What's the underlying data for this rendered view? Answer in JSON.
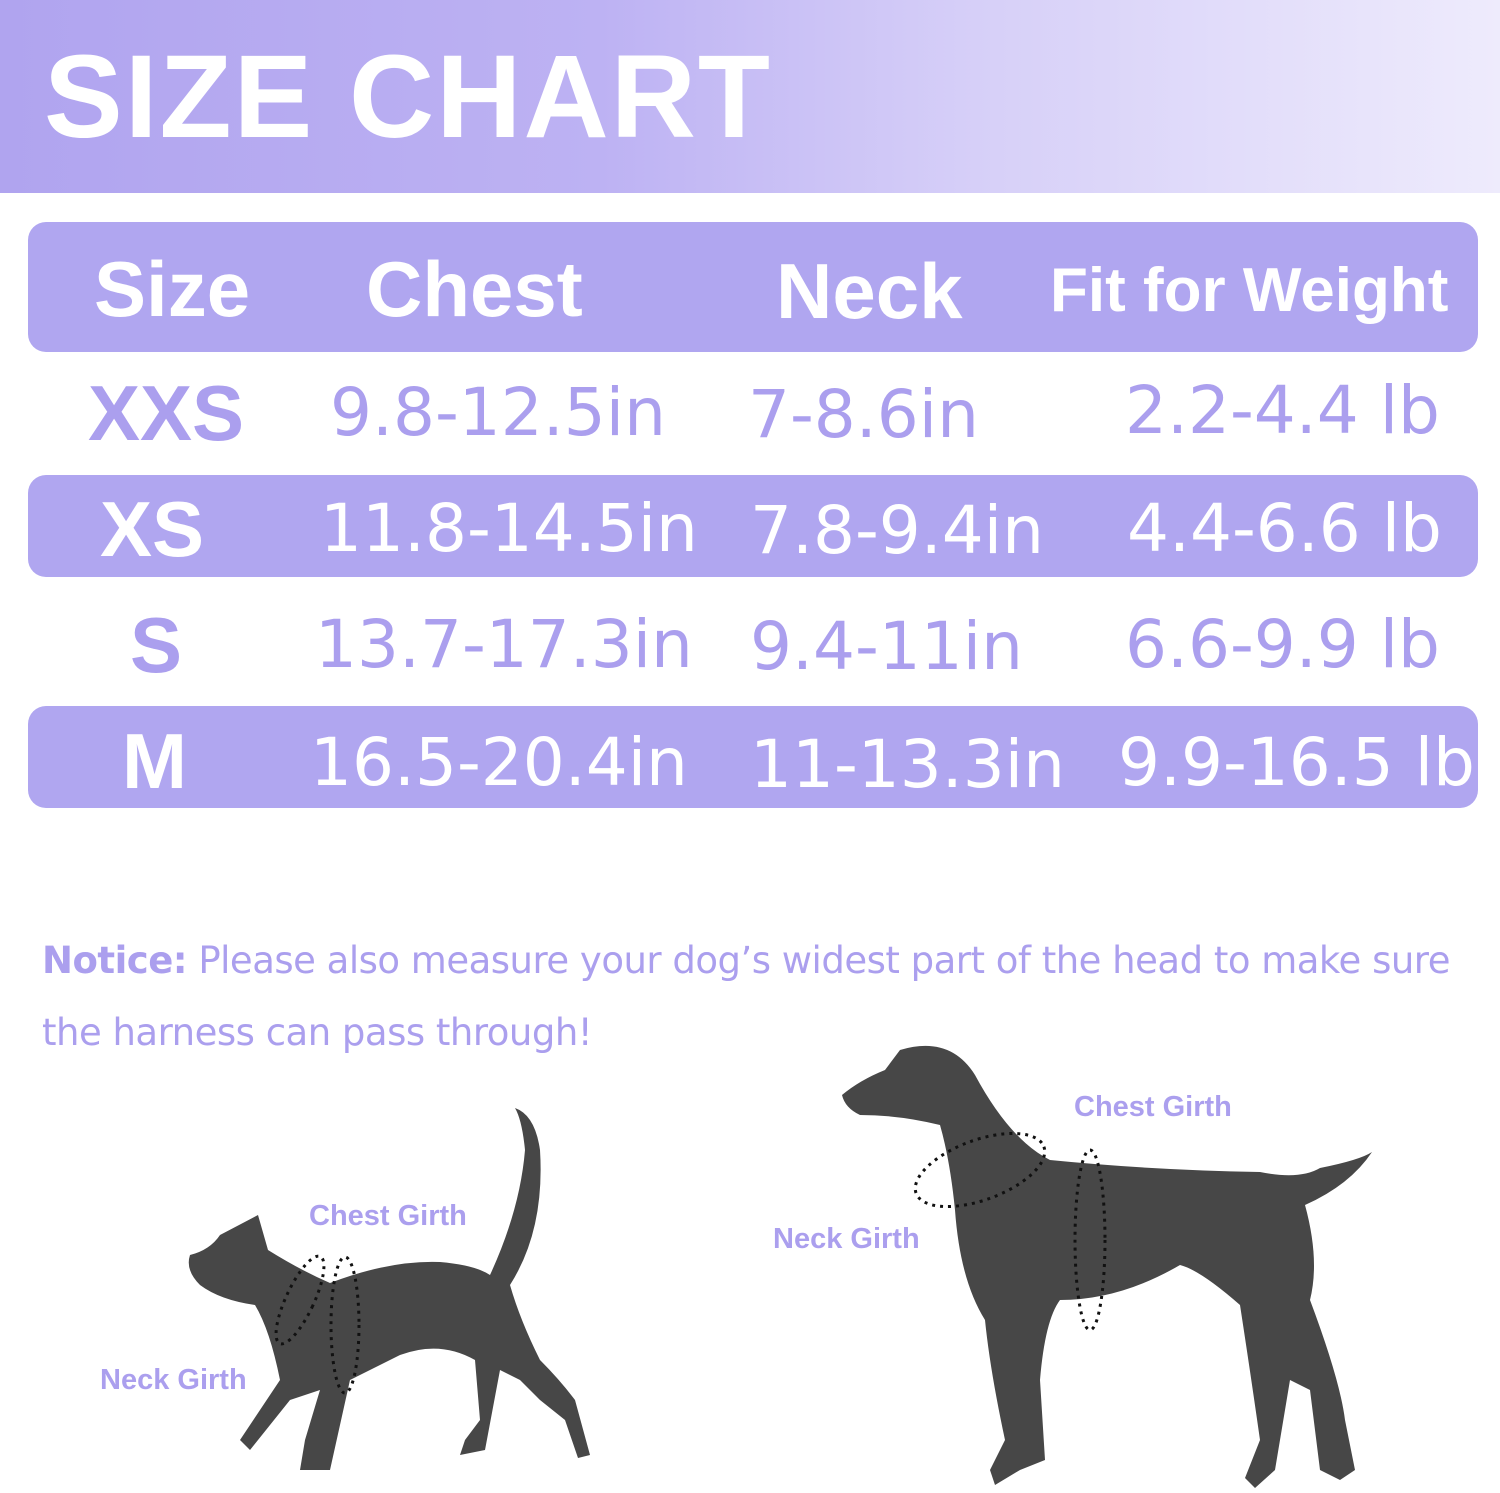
{
  "title": "SIZE CHART",
  "colors": {
    "accent": "#b0a6f0",
    "text_purple": "#ab9fee",
    "silhouette": "#474747"
  },
  "table": {
    "headers": [
      "Size",
      "Chest",
      "Neck",
      "Fit for Weight"
    ],
    "rows": [
      {
        "size": "XXS",
        "chest": "9.8-12.5in",
        "neck": "7-8.6in",
        "weight": "2.2-4.4 lb"
      },
      {
        "size": "XS",
        "chest": "11.8-14.5in",
        "neck": "7.8-9.4in",
        "weight": "4.4-6.6 lb"
      },
      {
        "size": "S",
        "chest": "13.7-17.3in",
        "neck": "9.4-11in",
        "weight": "6.6-9.9 lb"
      },
      {
        "size": "M",
        "chest": "16.5-20.4in",
        "neck": "11-13.3in",
        "weight": "9.9-16.5 lb"
      }
    ]
  },
  "notice": {
    "label": "Notice:",
    "text": " Please also measure your dog’s widest part of the head to make sure the harness can pass through!"
  },
  "cat": {
    "chest_label": "Chest Girth",
    "neck_label": "Neck Girth"
  },
  "dog": {
    "chest_label": "Chest Girth",
    "neck_label": "Neck Girth"
  }
}
